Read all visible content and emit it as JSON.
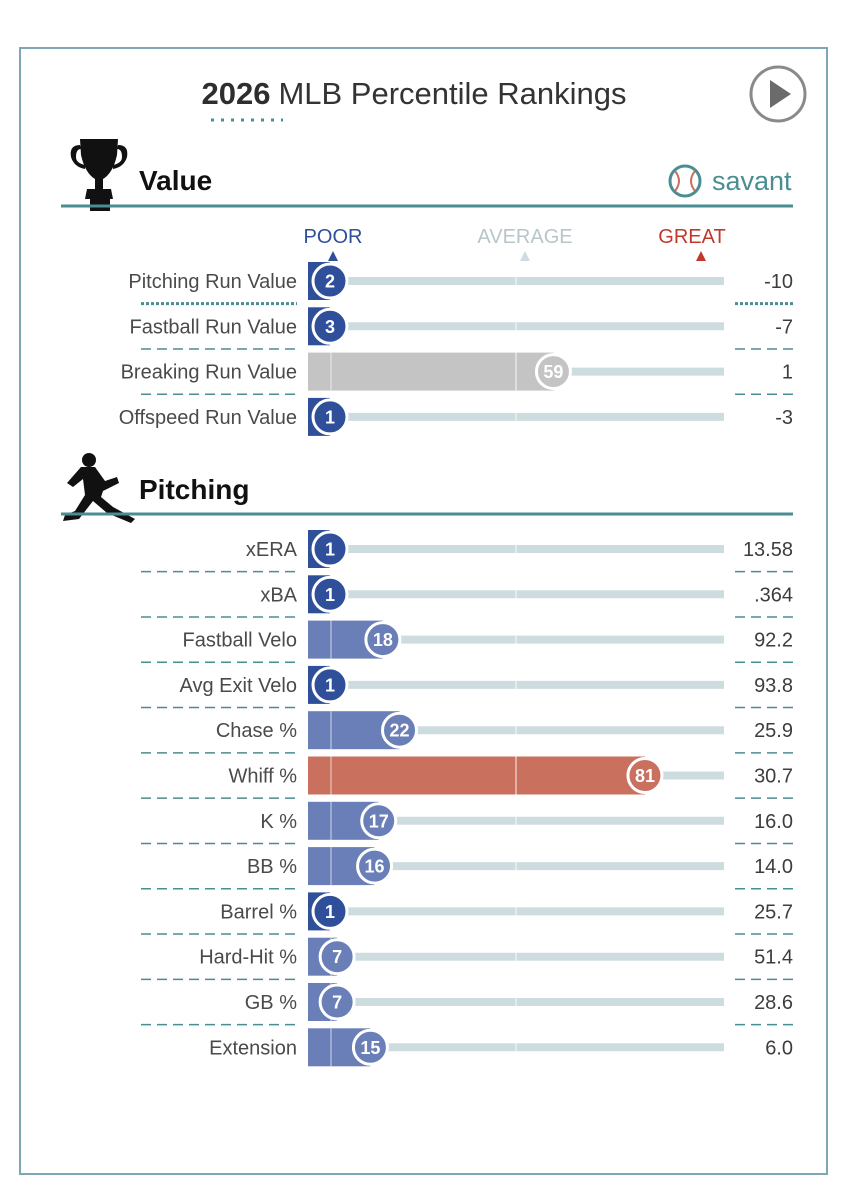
{
  "header": {
    "year": "2026",
    "title": "MLB Percentile Rankings"
  },
  "brand": {
    "name": "savant"
  },
  "scale": {
    "poor": "POOR",
    "average": "AVERAGE",
    "great": "GREAT"
  },
  "colors": {
    "poor_dark": "#2f4f9a",
    "poor_mid": "#6a7fb8",
    "average": "#c3c4c3",
    "great": "#c9705f",
    "track": "#cddddf",
    "teal": "#4a8d93"
  },
  "chart_data": {
    "type": "bar",
    "xlim": [
      0,
      100
    ],
    "sections": [
      {
        "name": "Value",
        "icon": "trophy-icon",
        "rows": [
          {
            "label": "Pitching Run Value",
            "percentile": 2,
            "value": "-10"
          },
          {
            "label": "Fastball Run Value",
            "percentile": 3,
            "value": "-7"
          },
          {
            "label": "Breaking Run Value",
            "percentile": 59,
            "value": "1"
          },
          {
            "label": "Offspeed Run Value",
            "percentile": 1,
            "value": "-3"
          }
        ]
      },
      {
        "name": "Pitching",
        "icon": "pitcher-icon",
        "rows": [
          {
            "label": "xERA",
            "percentile": 1,
            "value": "13.58"
          },
          {
            "label": "xBA",
            "percentile": 1,
            "value": ".364"
          },
          {
            "label": "Fastball Velo",
            "percentile": 18,
            "value": "92.2"
          },
          {
            "label": "Avg Exit Velo",
            "percentile": 1,
            "value": "93.8"
          },
          {
            "label": "Chase %",
            "percentile": 22,
            "value": "25.9"
          },
          {
            "label": "Whiff %",
            "percentile": 81,
            "value": "30.7"
          },
          {
            "label": "K %",
            "percentile": 17,
            "value": "16.0"
          },
          {
            "label": "BB %",
            "percentile": 16,
            "value": "14.0"
          },
          {
            "label": "Barrel %",
            "percentile": 1,
            "value": "25.7"
          },
          {
            "label": "Hard-Hit %",
            "percentile": 7,
            "value": "51.4"
          },
          {
            "label": "GB %",
            "percentile": 7,
            "value": "28.6"
          },
          {
            "label": "Extension",
            "percentile": 15,
            "value": "6.0"
          }
        ]
      }
    ]
  }
}
